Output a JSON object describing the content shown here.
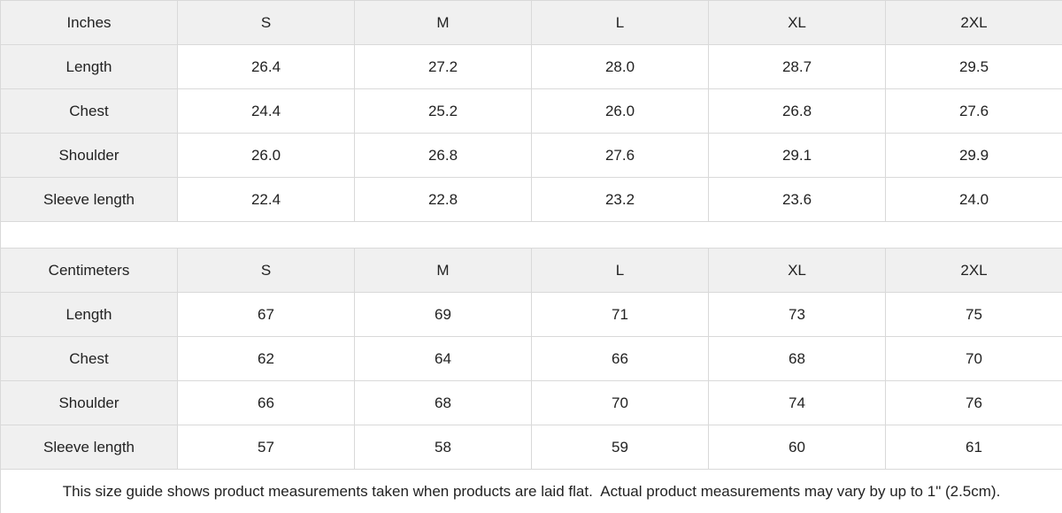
{
  "colors": {
    "header_bg": "#f0f0f0",
    "cell_bg": "#ffffff",
    "border": "#d9d9d9",
    "text": "#222222"
  },
  "tables": [
    {
      "unit_label": "Inches",
      "size_headers": [
        "S",
        "M",
        "L",
        "XL",
        "2XL"
      ],
      "rows": [
        {
          "label": "Length",
          "values": [
            "26.4",
            "27.2",
            "28.0",
            "28.7",
            "29.5"
          ]
        },
        {
          "label": "Chest",
          "values": [
            "24.4",
            "25.2",
            "26.0",
            "26.8",
            "27.6"
          ]
        },
        {
          "label": "Shoulder",
          "values": [
            "26.0",
            "26.8",
            "27.6",
            "29.1",
            "29.9"
          ]
        },
        {
          "label": "Sleeve length",
          "values": [
            "22.4",
            "22.8",
            "23.2",
            "23.6",
            "24.0"
          ]
        }
      ]
    },
    {
      "unit_label": "Centimeters",
      "size_headers": [
        "S",
        "M",
        "L",
        "XL",
        "2XL"
      ],
      "rows": [
        {
          "label": "Length",
          "values": [
            "67",
            "69",
            "71",
            "73",
            "75"
          ]
        },
        {
          "label": "Chest",
          "values": [
            "62",
            "64",
            "66",
            "68",
            "70"
          ]
        },
        {
          "label": "Shoulder",
          "values": [
            "66",
            "68",
            "70",
            "74",
            "76"
          ]
        },
        {
          "label": "Sleeve length",
          "values": [
            "57",
            "58",
            "59",
            "60",
            "61"
          ]
        }
      ]
    }
  ],
  "footer": {
    "note": "This size guide shows product measurements taken when products are laid flat.  Actual product measurements may vary by up to 1\" (2.5cm)."
  }
}
